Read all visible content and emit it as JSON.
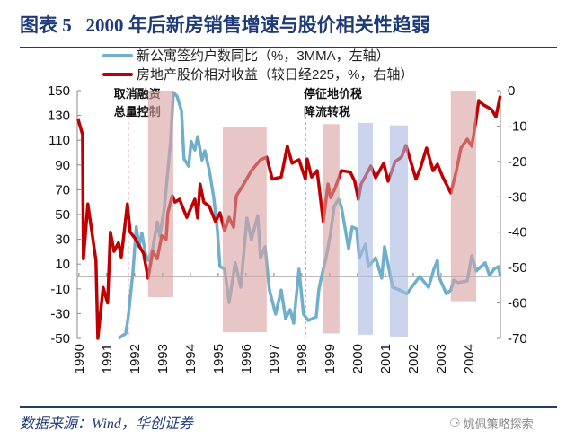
{
  "header": {
    "title": "图表 5   2000 年后新房销售增速与股价相关性趋弱"
  },
  "footer": {
    "source": "数据来源：Wind，华创证券",
    "watermark": "姚佩策略探索",
    "watermark_icon": "wechat-icon"
  },
  "chart_data": {
    "type": "line",
    "title": "2000 年后新房销售增速与股价相关性趋弱",
    "xlabel": "",
    "ylabel": "",
    "x_ticks": [
      "1990",
      "1991",
      "1992",
      "1993",
      "1994",
      "1995",
      "1996",
      "1997",
      "1998",
      "1999",
      "2000",
      "2001",
      "2002",
      "2003",
      "2004"
    ],
    "xlim": [
      1989.94,
      2005.13
    ],
    "left_axis": {
      "ylim": [
        -50,
        150
      ],
      "ticks": [
        "150",
        "130",
        "110",
        "90",
        "70",
        "50",
        "30",
        "10",
        "-10",
        "-30",
        "-50"
      ]
    },
    "right_axis": {
      "ylim": [
        -70,
        0
      ],
      "ticks": [
        "0",
        "-10",
        "-20",
        "-30",
        "-40",
        "-50",
        "-60",
        "-70"
      ]
    },
    "legend_position": "top-center",
    "series": [
      {
        "name": "新公寓签约户数同比（%，3MMA，左轴）",
        "axis": "left",
        "color": "#6FAFCC",
        "x": [
          1991.42,
          1991.68,
          1991.77,
          1991.94,
          1992.06,
          1992.16,
          1992.26,
          1992.39,
          1992.48,
          1992.65,
          1992.81,
          1992.9,
          1993.06,
          1993.29,
          1993.39,
          1993.52,
          1993.68,
          1993.77,
          1993.94,
          1994.03,
          1994.16,
          1994.26,
          1994.42,
          1994.52,
          1994.68,
          1994.84,
          1994.97,
          1995.06,
          1995.23,
          1995.39,
          1995.61,
          1995.81,
          1996.03,
          1996.19,
          1996.42,
          1996.52,
          1996.68,
          1996.84,
          1997.06,
          1997.26,
          1997.42,
          1997.58,
          1997.71,
          1997.9,
          1998.06,
          1998.23,
          1998.52,
          1998.61,
          1998.71,
          1998.87,
          1999.03,
          1999.16,
          1999.32,
          1999.42,
          1999.68,
          1999.81,
          1999.97,
          2000.06,
          2000.29,
          2000.39,
          2000.65,
          2000.87,
          2000.97,
          2001.26,
          2001.52,
          2001.77,
          2002.23,
          2002.55,
          2002.74,
          2002.87,
          2002.9,
          2003.19,
          2003.35,
          2003.45,
          2003.61,
          2003.94,
          2004.1,
          2004.26,
          2004.58,
          2004.74,
          2004.9,
          2005.06,
          2005.12
        ],
        "y": [
          -50,
          -46,
          -33,
          4,
          40,
          24,
          35,
          18,
          13,
          22.5,
          44,
          32.6,
          54,
          109,
          148.5,
          145.6,
          134,
          95,
          89,
          109,
          102,
          113,
          94,
          101.4,
          85.5,
          63.8,
          37,
          8,
          6,
          -21,
          11,
          -8.7,
          47,
          29.7,
          49,
          15,
          24,
          -11,
          -30.4,
          -11,
          -34,
          -26.8,
          -37.7,
          5.8,
          -30.4,
          -35.5,
          -32.6,
          -11,
          0,
          15,
          34.8,
          56.5,
          62.3,
          56.5,
          22.5,
          40,
          38.4,
          15,
          26,
          8,
          15,
          -1.4,
          24,
          -8.7,
          -11,
          -14,
          0,
          -8.7,
          5.8,
          13,
          0.8,
          -14,
          -11,
          -3,
          -5,
          -3.6,
          16.7,
          4.4,
          11,
          0.8,
          6,
          8,
          0.8
        ]
      },
      {
        "name": "房地产股价相对收益（较日经225，%，右轴）",
        "axis": "right",
        "color": "#C00000",
        "x": [
          1989.97,
          1990.13,
          1990.16,
          1990.32,
          1990.61,
          1990.68,
          1990.87,
          1991.03,
          1991.13,
          1991.26,
          1991.42,
          1991.52,
          1991.74,
          1991.84,
          1992.0,
          1992.32,
          1992.48,
          1992.65,
          1992.81,
          1992.97,
          1993.13,
          1993.19,
          1993.35,
          1993.45,
          1993.61,
          1993.87,
          1994.16,
          1994.26,
          1994.35,
          1994.48,
          1994.68,
          1994.9,
          1995.06,
          1995.23,
          1995.39,
          1995.55,
          1995.65,
          1995.87,
          1996.19,
          1996.52,
          1996.74,
          1996.94,
          1997.26,
          1997.48,
          1997.65,
          1997.9,
          1998.13,
          1998.19,
          1998.35,
          1998.55,
          1998.77,
          1998.94,
          1999.03,
          1999.19,
          1999.42,
          1999.74,
          1999.9,
          2000.03,
          2000.13,
          2000.48,
          2000.65,
          2000.94,
          2001.1,
          2001.35,
          2001.58,
          2001.74,
          2002.1,
          2002.26,
          2002.48,
          2002.71,
          2002.87,
          2003.06,
          2003.35,
          2003.55,
          2003.71,
          2003.94,
          2004.1,
          2004.26,
          2004.35,
          2004.52,
          2004.81,
          2004.97,
          2005.12
        ],
        "y": [
          -8.1,
          -12.4,
          -47.5,
          -32,
          -48,
          -70,
          -55.6,
          -60,
          -40,
          -45.4,
          -43,
          -47,
          -32,
          -40,
          -41.6,
          -46,
          -53,
          -45.4,
          -47.5,
          -41,
          -42,
          -34.5,
          -29.7,
          -31.5,
          -30.7,
          -35.8,
          -30.7,
          -36,
          -26.4,
          -31.5,
          -32.7,
          -37,
          -34.5,
          -39.6,
          -35.8,
          -38.6,
          -29.7,
          -27,
          -22.6,
          -19.5,
          -18.8,
          -25,
          -24.4,
          -15.7,
          -20.5,
          -19.5,
          -25,
          -19.3,
          -24.4,
          -22.6,
          -37,
          -26.4,
          -30.2,
          -27.7,
          -22.6,
          -23,
          -25.6,
          -30.7,
          -26.4,
          -21.3,
          -24.6,
          -20.5,
          -25.6,
          -20,
          -18.8,
          -15.5,
          -25,
          -21.8,
          -16.2,
          -22.6,
          -20.8,
          -24.4,
          -28.9,
          -22.6,
          -16.2,
          -13.7,
          -15.7,
          -8.1,
          -2.8,
          -4,
          -5.3,
          -7.4,
          -1.5
        ]
      }
    ],
    "shaded_periods": [
      {
        "x": [
          1992.48,
          1993.39
        ],
        "y_left": [
          -16.7,
          150
        ],
        "color": "#D9A0A0"
      },
      {
        "x": [
          1995.16,
          1996.74
        ],
        "y_left": [
          -45,
          121
        ],
        "color": "#D9A0A0"
      },
      {
        "x": [
          1998.77,
          1999.35
        ],
        "y_left": [
          -46,
          123
        ],
        "color": "#D9A0A0"
      },
      {
        "x": [
          2000.0,
          2000.55
        ],
        "y_left": [
          -47,
          124
        ],
        "color": "#A9B8E0"
      },
      {
        "x": [
          2001.16,
          2001.81
        ],
        "y_left": [
          -48.5,
          122
        ],
        "color": "#A9B8E0"
      },
      {
        "x": [
          2003.35,
          2004.26
        ],
        "y_left": [
          -20,
          150
        ],
        "color": "#D9A0A0"
      }
    ],
    "event_lines": [
      {
        "x": 1991.77,
        "label_lines": [
          "取消融资",
          "总量控制"
        ]
      },
      {
        "x": 1998.13,
        "label_lines": [
          "停征地价税",
          "降流转税"
        ]
      }
    ]
  }
}
